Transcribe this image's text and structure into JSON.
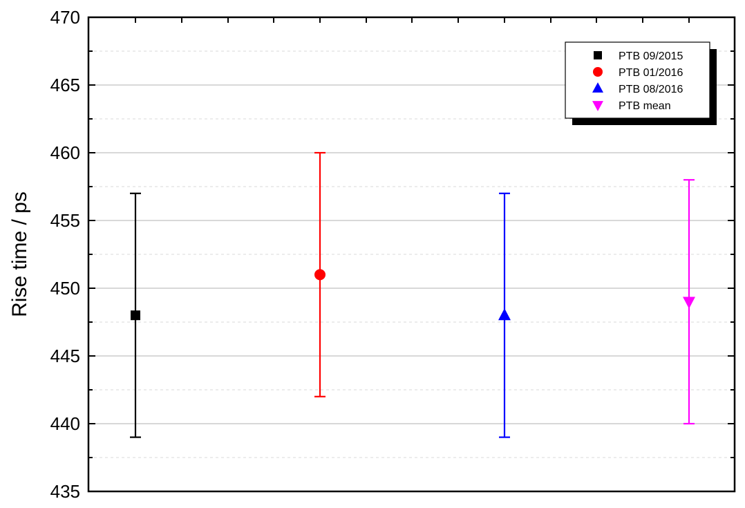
{
  "chart_data": {
    "type": "scatter",
    "title": "",
    "xlabel": "",
    "ylabel": "Rise time / ps",
    "ylim": [
      435,
      470
    ],
    "yticks": [
      "435",
      "440",
      "445",
      "450",
      "455",
      "460",
      "465",
      "470"
    ],
    "grid": true,
    "legend_position": "top-right",
    "series": [
      {
        "name": "PTB 09/2015",
        "x": 1,
        "y": 448,
        "yerr_low": 439,
        "yerr_high": 457,
        "marker": "square",
        "color": "#000000"
      },
      {
        "name": "PTB 01/2016",
        "x": 2,
        "y": 451,
        "yerr_low": 442,
        "yerr_high": 460,
        "marker": "circle",
        "color": "#ff0000"
      },
      {
        "name": "PTB 08/2016",
        "x": 3,
        "y": 448,
        "yerr_low": 439,
        "yerr_high": 457,
        "marker": "triangle-up",
        "color": "#0000ff"
      },
      {
        "name": "PTB mean",
        "x": 4,
        "y": 449,
        "yerr_low": 440,
        "yerr_high": 458,
        "marker": "triangle-down",
        "color": "#ff00ff"
      }
    ]
  }
}
